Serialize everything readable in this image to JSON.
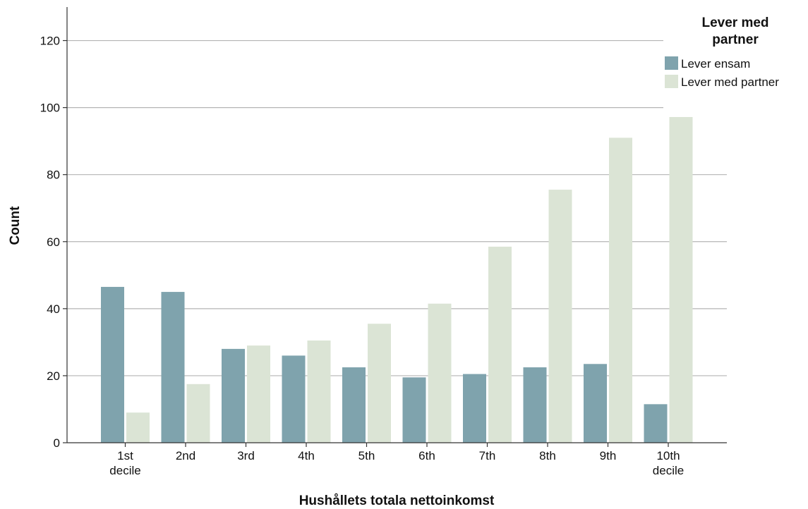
{
  "chart_data": {
    "type": "bar",
    "title": "",
    "xlabel": "Hushållets totala nettoinkomst",
    "ylabel": "Count",
    "categories": [
      [
        "1st",
        "decile"
      ],
      [
        "2nd"
      ],
      [
        "3rd"
      ],
      [
        "4th"
      ],
      [
        "5th"
      ],
      [
        "6th"
      ],
      [
        "7th"
      ],
      [
        "8th"
      ],
      [
        "9th"
      ],
      [
        "10th",
        "decile"
      ]
    ],
    "series": [
      {
        "name": "Lever ensam",
        "color": "#7fa3ad",
        "values": [
          46.5,
          45,
          28,
          26,
          22.5,
          19.5,
          20.5,
          22.5,
          23.5,
          11.5
        ]
      },
      {
        "name": "Lever med partner",
        "color": "#dbe4d5",
        "values": [
          9,
          17.5,
          29,
          30.5,
          35.5,
          41.5,
          58.5,
          75.5,
          91,
          98.5
        ]
      }
    ],
    "ylim": [
      0,
      130
    ],
    "yticks": [
      0,
      20,
      40,
      60,
      80,
      100,
      120
    ],
    "grid": true,
    "legend": {
      "title": "Lever med partner",
      "title_lines": [
        "Lever med",
        "partner"
      ],
      "position": "top-right"
    }
  }
}
